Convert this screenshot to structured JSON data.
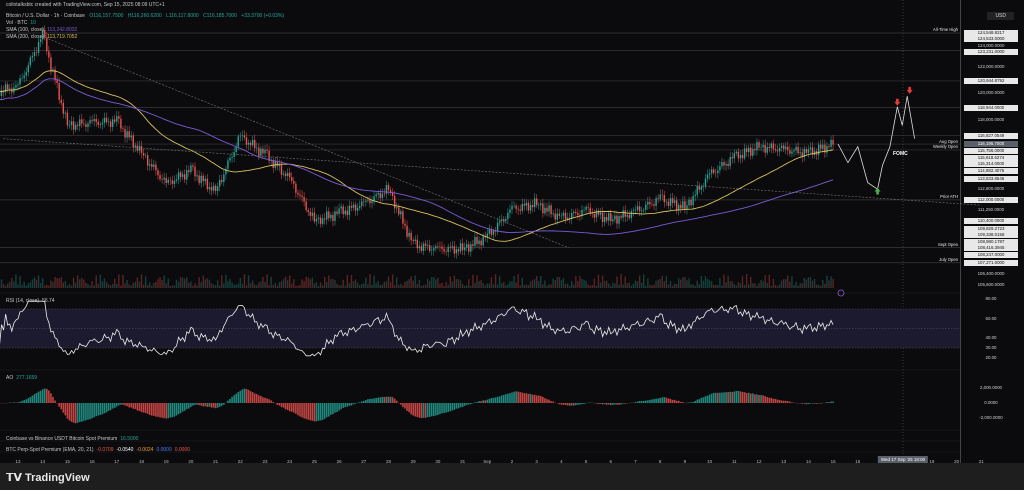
{
  "header": {
    "credit": "colintalksbtc created with TradingView.com, Sep 15, 2025 08:09 UTC+1"
  },
  "legend": {
    "symbol": "Bitcoin / U.S. Dollar · 1h · Coinbase",
    "ohlc": [
      "O116,157.7500",
      "H116,260.6200",
      "L116,117.8000",
      "C116,185.7000",
      "+33.3700 (+0.03%)"
    ],
    "vol_label": "Vol · BTC",
    "vol_value": "10",
    "sma100_label": "SMA (100, close)",
    "sma100_value": "113,242.8032",
    "sma200_label": "SMA (200, close)",
    "sma200_value": "113,719.7052"
  },
  "colors": {
    "bg": "#0b0b0d",
    "up": "#26a69a",
    "down": "#ef5350",
    "sma100": "#7b5cd6",
    "sma200": "#d8c05a",
    "rsi_band": "#1c1a2e",
    "arrow_up": "#4caf50",
    "arrow_down": "#e53935"
  },
  "currency": "USD",
  "annotation": "FOMC",
  "crosshair_time": "Wed 17 Sep '25 18:00",
  "brand": "TradingView",
  "chart_data": [
    {
      "type": "candlestick",
      "interval": "1h",
      "xlabel": "",
      "ylabel": "",
      "x_ticks": [
        "13",
        "14",
        "15",
        "16",
        "17",
        "18",
        "19",
        "20",
        "21",
        "22",
        "23",
        "24",
        "25",
        "26",
        "27",
        "28",
        "29",
        "30",
        "31",
        "Sep",
        "2",
        "3",
        "4",
        "5",
        "6",
        "7",
        "8",
        "9",
        "10",
        "11",
        "12",
        "13",
        "14",
        "15",
        "16",
        "17",
        "18",
        "19",
        "20",
        "21"
      ],
      "ylim": [
        105600,
        124600
      ],
      "daily_close": [
        {
          "date": "Aug 13",
          "close": 120500
        },
        {
          "date": "Aug 14",
          "close": 124400
        },
        {
          "date": "Aug 15",
          "close": 117600
        },
        {
          "date": "Aug 16",
          "close": 117800
        },
        {
          "date": "Aug 17",
          "close": 117900
        },
        {
          "date": "Aug 18",
          "close": 115500
        },
        {
          "date": "Aug 19",
          "close": 113200
        },
        {
          "date": "Aug 20",
          "close": 114200
        },
        {
          "date": "Aug 21",
          "close": 112600
        },
        {
          "date": "Aug 22",
          "close": 116800
        },
        {
          "date": "Aug 23",
          "close": 115400
        },
        {
          "date": "Aug 24",
          "close": 113600
        },
        {
          "date": "Aug 25",
          "close": 110400
        },
        {
          "date": "Aug 26",
          "close": 111000
        },
        {
          "date": "Aug 27",
          "close": 111700
        },
        {
          "date": "Aug 28",
          "close": 112800
        },
        {
          "date": "Aug 29",
          "close": 108600
        },
        {
          "date": "Aug 30",
          "close": 108300
        },
        {
          "date": "Aug 31",
          "close": 108300
        },
        {
          "date": "Sep 1",
          "close": 109200
        },
        {
          "date": "Sep 2",
          "close": 111300
        },
        {
          "date": "Sep 3",
          "close": 111700
        },
        {
          "date": "Sep 4",
          "close": 110600
        },
        {
          "date": "Sep 5",
          "close": 111200
        },
        {
          "date": "Sep 6",
          "close": 110500
        },
        {
          "date": "Sep 7",
          "close": 111100
        },
        {
          "date": "Sep 8",
          "close": 112100
        },
        {
          "date": "Sep 9",
          "close": 111400
        },
        {
          "date": "Sep 10",
          "close": 113900
        },
        {
          "date": "Sep 11",
          "close": 115200
        },
        {
          "date": "Sep 12",
          "close": 116000
        },
        {
          "date": "Sep 13",
          "close": 115800
        },
        {
          "date": "Sep 14",
          "close": 115500
        },
        {
          "date": "Sep 15",
          "close": 116195.7
        }
      ],
      "price_levels": [
        {
          "label": "All-Time High",
          "price": 124548.8217
        },
        {
          "label": "",
          "price": 123231.0
        },
        {
          "label": "",
          "price": 120944.8792
        },
        {
          "label": "",
          "price": 118944.0
        },
        {
          "label": "",
          "price": 116827.0549
        },
        {
          "label": "Aug Open",
          "price": 116195.7
        },
        {
          "label": "Weekly Open",
          "price": 115756.0
        },
        {
          "label": "Prior ATH",
          "price": 112000.0
        },
        {
          "label": "Sept Open",
          "price": 108416.3945
        },
        {
          "label": "July Open",
          "price": 107271.0
        }
      ],
      "axis_labels": [
        {
          "text": "124,548.8217",
          "price": 124548.8217,
          "style": "box"
        },
        {
          "text": "124,533.0000",
          "price": 124533,
          "style": "box"
        },
        {
          "text": "124,000.0000",
          "price": 124000,
          "style": "plain"
        },
        {
          "text": "123,231.0000",
          "price": 123231,
          "style": "box"
        },
        {
          "text": "122,000.0000",
          "price": 122000,
          "style": "plain"
        },
        {
          "text": "120,944.8792",
          "price": 120944.8792,
          "style": "box"
        },
        {
          "text": "120,000.0000",
          "price": 120000,
          "style": "plain"
        },
        {
          "text": "118,944.0000",
          "price": 118944,
          "style": "box"
        },
        {
          "text": "118,000.0000",
          "price": 118000,
          "style": "plain"
        },
        {
          "text": "116,827.0549",
          "price": 116827.0549,
          "style": "box"
        },
        {
          "text": "116,195.7000",
          "price": 116195.7,
          "style": "cur"
        },
        {
          "text": "115,756.0000",
          "price": 115656,
          "style": "box"
        },
        {
          "text": "115,618.6274",
          "price": 115400,
          "style": "box"
        },
        {
          "text": "115,314.0000",
          "price": 115144,
          "style": "box"
        },
        {
          "text": "114,882.4075",
          "price": 114882.4075,
          "style": "box"
        },
        {
          "text": "113,533.8546",
          "price": 113533.8546,
          "style": "box"
        },
        {
          "text": "112,800.0000",
          "price": 112800,
          "style": "plain"
        },
        {
          "text": "112,000.0000",
          "price": 112000,
          "style": "box"
        },
        {
          "text": "111,250.0000",
          "price": 111250,
          "style": "plain"
        },
        {
          "text": "110,400.0000",
          "price": 110400,
          "style": "box"
        },
        {
          "text": "109,829.2723",
          "price": 109829.2723,
          "style": "box"
        },
        {
          "text": "109,338.0158",
          "price": 109400,
          "style": "box"
        },
        {
          "text": "108,980.1787",
          "price": 108980.1787,
          "style": "box"
        },
        {
          "text": "108,416.3945",
          "price": 108416.3945,
          "style": "box"
        },
        {
          "text": "108,247.0000",
          "price": 108100,
          "style": "box"
        },
        {
          "text": "107,271.0000",
          "price": 107271,
          "style": "box"
        },
        {
          "text": "106,400.0000",
          "price": 106400,
          "style": "plain"
        },
        {
          "text": "105,600.0000",
          "price": 105600,
          "style": "plain"
        }
      ],
      "projection_path": [
        [
          15.2,
          116200
        ],
        [
          15.6,
          114800
        ],
        [
          16.0,
          116000
        ],
        [
          16.4,
          113300
        ],
        [
          16.8,
          112800
        ],
        [
          17.0,
          114600
        ],
        [
          17.3,
          116000
        ],
        [
          17.6,
          119000
        ],
        [
          17.8,
          117600
        ],
        [
          18.0,
          119800
        ],
        [
          18.3,
          116600
        ]
      ],
      "arrows": [
        {
          "dir": "up",
          "date_index": 16.8,
          "price": 112700
        },
        {
          "dir": "down",
          "date_index": 17.6,
          "price": 119300
        },
        {
          "dir": "down",
          "date_index": 18.1,
          "price": 120200
        }
      ],
      "trendlines": [
        [
          [
            1.1,
            124200
          ],
          [
            22.3,
            108400
          ]
        ],
        [
          [
            -0.6,
            116600
          ],
          [
            39,
            111600
          ]
        ]
      ]
    },
    {
      "type": "line",
      "name_label": "RSI (14, close)",
      "value": "56.74",
      "ylim": [
        20,
        80
      ],
      "band": [
        30,
        70
      ],
      "axis_ticks": [
        "80.00",
        "60.00",
        "40.00",
        "30.00",
        "20.00"
      ]
    },
    {
      "type": "histogram",
      "name_label": "AO",
      "value": "277.1659",
      "axis_ticks": [
        "2,000.0000",
        "0.0000",
        "-2,000.0000"
      ]
    },
    {
      "type": "indicator",
      "name_label": "Coinbase vs Binance USDT Bitcoin Spot Premium",
      "value": "16.5000"
    },
    {
      "type": "indicator",
      "name_label": "BTC Perp-Spot Premium (EMA, 20, 21)",
      "values": [
        "-0.0709",
        "-0.0540",
        "-0.0024",
        "0.0000",
        "0.0000"
      ]
    }
  ]
}
